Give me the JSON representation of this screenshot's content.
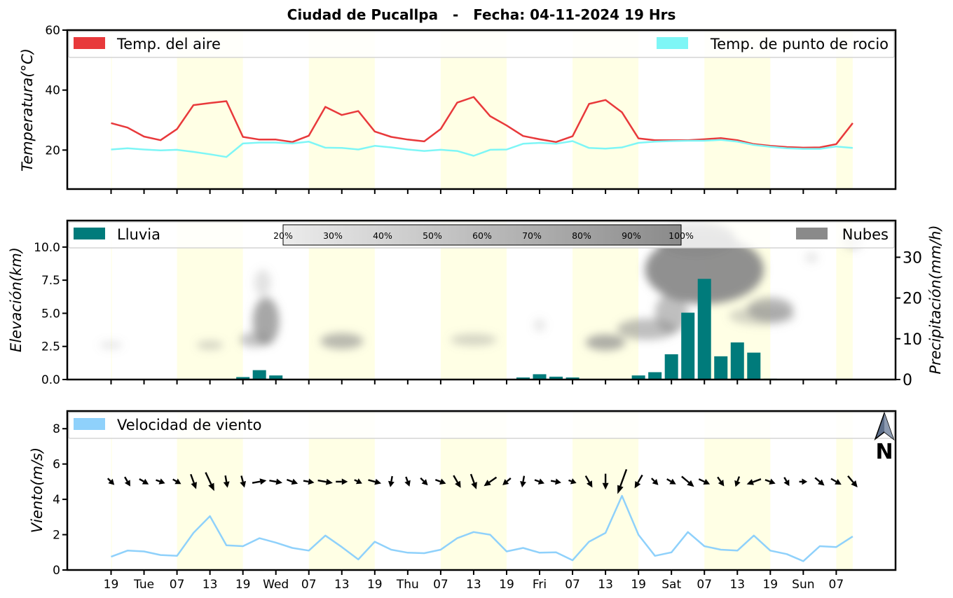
{
  "title": "Ciudad de Pucallpa   -   Fecha: 04-11-2024 19 Hrs",
  "x_tick_labels": [
    "19",
    "Tue",
    "07",
    "13",
    "19",
    "Wed",
    "07",
    "13",
    "19",
    "Thu",
    "07",
    "13",
    "19",
    "Fri",
    "07",
    "13",
    "19",
    "Sat",
    "07",
    "13",
    "19",
    "Sun",
    "07"
  ],
  "north_label": "N",
  "chart_data": [
    {
      "type": "line",
      "ylabel": "Temperatura(°C)",
      "ylim": [
        7,
        60
      ],
      "y_ticks": [
        "20",
        "40",
        "60"
      ],
      "legend": [
        "Temp. del aire",
        "Temp. de punto de rocio"
      ],
      "series": [
        {
          "name": "Temp. del aire",
          "color": "#e8393b",
          "values": [
            29,
            27.5,
            24.5,
            23.3,
            27,
            35,
            35.7,
            36.3,
            24.4,
            23.5,
            23.5,
            22.7,
            24.8,
            34.4,
            31.7,
            33,
            26.2,
            24.4,
            23.5,
            22.9,
            27,
            35.8,
            37.7,
            31.3,
            28.2,
            24.7,
            23.6,
            22.7,
            24.6,
            35.4,
            36.7,
            32.6,
            23.9,
            23.3,
            23.3,
            23.3,
            23.6,
            24,
            23.3,
            22,
            21.4,
            21,
            20.8,
            20.9,
            22,
            29
          ]
        },
        {
          "name": "Temp. de punto de rocio",
          "color": "#7ef6f6",
          "values": [
            20.2,
            20.6,
            20.2,
            19.9,
            20.1,
            19.4,
            18.6,
            17.7,
            22.2,
            22.5,
            22.5,
            22.2,
            22.8,
            20.8,
            20.7,
            20.2,
            21.4,
            20.9,
            20.2,
            19.7,
            20.1,
            19.7,
            18.1,
            20.1,
            20.2,
            22.1,
            22.4,
            22.1,
            23,
            20.7,
            20.5,
            20.9,
            22.4,
            22.8,
            23,
            23.1,
            23.1,
            23.4,
            22.8,
            21.7,
            21.1,
            20.6,
            20.4,
            20.4,
            21.2,
            20.7
          ]
        }
      ]
    },
    {
      "type": "bar",
      "ylabel": "Elevación(km)",
      "ylabel_right": "Precipitación(mm/h)",
      "ylim": [
        0,
        12
      ],
      "y_ticks": [
        "0.0",
        "2.5",
        "5.0",
        "7.5",
        "10.0"
      ],
      "ylim_right": [
        0,
        39
      ],
      "y_ticks_right": [
        "0",
        "10",
        "20",
        "30"
      ],
      "legend": [
        "Lluvia",
        "Nubes"
      ],
      "rain_color": "#007b7b",
      "cloud_color": "#8a8a8a",
      "cloud_scale": [
        "20%",
        "30%",
        "40%",
        "50%",
        "60%",
        "70%",
        "80%",
        "90%",
        "100%"
      ],
      "rain_values": [
        0,
        0,
        0,
        0,
        0,
        0,
        0,
        0,
        0.6,
        2.3,
        1,
        0.1,
        0,
        0,
        0.1,
        0,
        0,
        0,
        0,
        0,
        0,
        0,
        0,
        0.1,
        0,
        0.5,
        1.3,
        0.7,
        0.5,
        0.1,
        0.1,
        0,
        1,
        1.8,
        6.2,
        16.4,
        24.7,
        5.7,
        9.1,
        6.6,
        0.2,
        0,
        0,
        0,
        0,
        0
      ],
      "clouds": [
        {
          "i": 0,
          "el": 2.6,
          "sx": 0.7,
          "sy": 0.3,
          "a": 0.2
        },
        {
          "i": 6,
          "el": 2.6,
          "sx": 0.8,
          "sy": 0.35,
          "a": 0.35
        },
        {
          "i": 8.7,
          "el": 3.0,
          "sx": 0.9,
          "sy": 0.55,
          "a": 0.5
        },
        {
          "i": 9.4,
          "el": 4.4,
          "sx": 0.8,
          "sy": 1.8,
          "a": 0.75
        },
        {
          "i": 9.2,
          "el": 7.3,
          "sx": 0.5,
          "sy": 1.0,
          "a": 0.25
        },
        {
          "i": 14,
          "el": 2.9,
          "sx": 1.3,
          "sy": 0.6,
          "a": 0.6
        },
        {
          "i": 22,
          "el": 3.0,
          "sx": 1.4,
          "sy": 0.45,
          "a": 0.35
        },
        {
          "i": 26,
          "el": 4.1,
          "sx": 0.35,
          "sy": 0.5,
          "a": 0.2
        },
        {
          "i": 30,
          "el": 2.8,
          "sx": 1.2,
          "sy": 0.6,
          "a": 0.7
        },
        {
          "i": 32.5,
          "el": 3.8,
          "sx": 1.8,
          "sy": 0.8,
          "a": 0.55
        },
        {
          "i": 36,
          "el": 8.3,
          "sx": 3.6,
          "sy": 2.6,
          "a": 0.95
        },
        {
          "i": 35.5,
          "el": 10.6,
          "sx": 2.4,
          "sy": 1.3,
          "a": 0.9
        },
        {
          "i": 34,
          "el": 5.0,
          "sx": 1.0,
          "sy": 1.5,
          "a": 0.55
        },
        {
          "i": 40,
          "el": 5.3,
          "sx": 1.4,
          "sy": 0.9,
          "a": 0.6
        },
        {
          "i": 39.5,
          "el": 4.8,
          "sx": 2.0,
          "sy": 0.7,
          "a": 0.35
        },
        {
          "i": 42.5,
          "el": 9.2,
          "sx": 0.4,
          "sy": 0.4,
          "a": 0.2
        },
        {
          "i": 45,
          "el": 10.5,
          "sx": 0.6,
          "sy": 0.7,
          "a": 0.3
        }
      ]
    },
    {
      "type": "line",
      "ylabel": "Viento(m/s)",
      "ylim": [
        0,
        9
      ],
      "y_ticks": [
        "0",
        "2",
        "4",
        "6",
        "8"
      ],
      "legend": [
        "Velocidad de viento"
      ],
      "series": [
        {
          "name": "Velocidad de viento",
          "color": "#8fd1fb",
          "values": [
            0.75,
            1.1,
            1.05,
            0.85,
            0.8,
            2.1,
            3.05,
            1.4,
            1.35,
            1.8,
            1.55,
            1.25,
            1.1,
            1.95,
            1.3,
            0.6,
            1.6,
            1.15,
            0.98,
            0.95,
            1.15,
            1.8,
            2.15,
            2.0,
            1.05,
            1.25,
            0.98,
            1.0,
            0.55,
            1.6,
            2.1,
            4.2,
            2.0,
            0.8,
            1.0,
            2.15,
            1.35,
            1.15,
            1.1,
            1.95,
            1.1,
            0.9,
            0.5,
            1.35,
            1.3,
            1.9
          ]
        }
      ],
      "wind_dir_deg": [
        135,
        150,
        120,
        110,
        120,
        160,
        155,
        170,
        165,
        80,
        100,
        110,
        100,
        100,
        90,
        115,
        105,
        190,
        160,
        135,
        110,
        150,
        160,
        235,
        230,
        190,
        110,
        100,
        110,
        150,
        180,
        200,
        210,
        135,
        120,
        130,
        115,
        145,
        200,
        250,
        110,
        150,
        90,
        130,
        120,
        140
      ]
    }
  ],
  "day_shading_ranges": [
    [
      0,
      0.05
    ],
    [
      4,
      8
    ],
    [
      12,
      16
    ],
    [
      20,
      24
    ],
    [
      28,
      32
    ],
    [
      36,
      40
    ],
    [
      44,
      45
    ]
  ]
}
